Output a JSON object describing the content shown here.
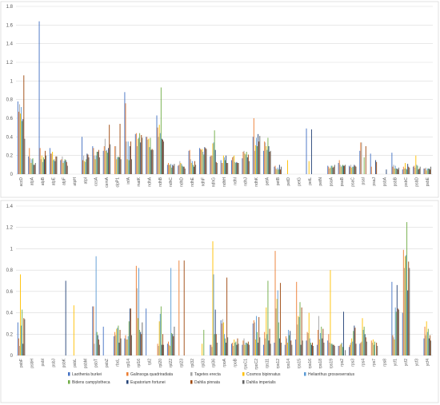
{
  "chart_data": [
    {
      "type": "bar",
      "ylim": [
        0,
        1.8
      ],
      "yticks": [
        "0",
        "0.2",
        "0.4",
        "0.6",
        "0.8",
        "1",
        "1.2",
        "1.4",
        "1.6",
        "1.8"
      ],
      "categories": [
        "accD",
        "atpA",
        "atpB",
        "atpE",
        "atpF",
        "atpH",
        "atpI",
        "ccsA",
        "cemA",
        "clpP1",
        "infA",
        "matK",
        "ndhA",
        "ndhB",
        "ndhC",
        "ndhD",
        "ndhE",
        "ndhF",
        "ndhG",
        "ndhH",
        "ndhI",
        "ndhJ",
        "ndhK",
        "petA",
        "petB",
        "petD",
        "petG",
        "petL",
        "petN",
        "psaA",
        "psaB",
        "psaC",
        "psaI",
        "psaJ",
        "psbA",
        "psbB",
        "psbC",
        "psbD",
        "psbE"
      ],
      "series": [
        {
          "name": "Laothenia burkei",
          "color": "#4472c4",
          "values": [
            0.78,
            0.19,
            1.64,
            0.28,
            0.15,
            0,
            0.4,
            0.3,
            0.25,
            0,
            0.88,
            0.43,
            0.4,
            0.63,
            0.1,
            0.09,
            0.25,
            0.28,
            0.19,
            0.15,
            0.15,
            0.17,
            0.4,
            0.25,
            0.08,
            0,
            0,
            0.49,
            0,
            0.09,
            0.12,
            0.09,
            0.25,
            0.22,
            0,
            0.23,
            0.05,
            0.08,
            0.06
          ]
        },
        {
          "name": "Galinsoga quadriradiata",
          "color": "#ed7d31",
          "values": [
            0.67,
            0.28,
            0.28,
            0.22,
            0.16,
            0,
            0.15,
            0.28,
            0.3,
            0.3,
            0.76,
            0.44,
            0.4,
            0.5,
            0.12,
            0.1,
            0.26,
            0.27,
            0.2,
            0.12,
            0.18,
            0.24,
            0.6,
            0.35,
            0.09,
            0,
            0,
            0,
            0,
            0.08,
            0.15,
            0.08,
            0.34,
            0.08,
            0,
            0.08,
            0.08,
            0.09,
            0.06
          ]
        },
        {
          "name": "Tagetes erecta",
          "color": "#a5a5a5",
          "values": [
            0.75,
            0.17,
            0.16,
            0.22,
            0.19,
            0,
            0.2,
            0.2,
            0.38,
            0.3,
            0.35,
            0.3,
            0.37,
            0.4,
            0.1,
            0.14,
            0.16,
            0.26,
            0.2,
            0.12,
            0.19,
            0.25,
            0.25,
            0.34,
            0.06,
            0,
            0,
            0,
            0,
            0.06,
            0.1,
            0.1,
            0.34,
            0,
            0,
            0.1,
            0.06,
            0.07,
            0.07
          ]
        },
        {
          "name": "Cosmos bipinnatus",
          "color": "#ffc000",
          "values": [
            0.65,
            0.12,
            0.2,
            0.24,
            0.12,
            0,
            0.14,
            0.16,
            0.25,
            0.16,
            0.16,
            0.38,
            0.38,
            0.53,
            0.1,
            0.12,
            0.12,
            0.27,
            0.33,
            0.2,
            0.2,
            0.22,
            0.31,
            0.3,
            0.05,
            0.15,
            0,
            0.14,
            0,
            0.07,
            0.08,
            0.07,
            0,
            0,
            0,
            0.06,
            0.12,
            0.2,
            0.04
          ]
        },
        {
          "name": "Helianthus grosseserratus",
          "color": "#5b9bd5",
          "values": [
            0.72,
            0.16,
            0.13,
            0.15,
            0.14,
            0,
            0.13,
            0.2,
            0.26,
            0.18,
            0.35,
            0.39,
            0.29,
            0.44,
            0.11,
            0.11,
            0.14,
            0.24,
            0.34,
            0.18,
            0.13,
            0.21,
            0.39,
            0.26,
            0.07,
            0,
            0,
            0,
            0,
            0.09,
            0.09,
            0.08,
            0,
            0,
            0,
            0.09,
            0.06,
            0.1,
            0.06
          ]
        },
        {
          "name": "Bidens campylotheca",
          "color": "#70ad47",
          "values": [
            0.57,
            0.17,
            0.18,
            0.16,
            0.16,
            0,
            0.16,
            0.24,
            0.23,
            0.19,
            0.15,
            0.44,
            0.39,
            0.93,
            0.07,
            0.09,
            0.1,
            0.21,
            0.47,
            0.15,
            0.12,
            0.24,
            0.3,
            0.39,
            0.05,
            0,
            0,
            0,
            0,
            0.09,
            0.1,
            0.08,
            0.18,
            0,
            0,
            0.06,
            0.05,
            0.09,
            0.06
          ]
        },
        {
          "name": "Eupatorium fortunei",
          "color": "#264478",
          "values": [
            0.59,
            0.1,
            0.16,
            0.14,
            0.15,
            0,
            0.22,
            0.24,
            0.28,
            0.18,
            0.3,
            0.34,
            0.26,
            0.38,
            0.1,
            0.08,
            0.08,
            0.29,
            0.26,
            0.2,
            0.13,
            0.18,
            0.43,
            0.3,
            0.1,
            0,
            0,
            0.48,
            0,
            0.07,
            0.09,
            0.1,
            0,
            0.15,
            0.05,
            0.06,
            0.11,
            0.05,
            0.06
          ]
        },
        {
          "name": "Dahlia pinnata",
          "color": "#9e480e",
          "values": [
            1.06,
            0.1,
            0.25,
            0.19,
            0.13,
            0,
            0.21,
            0.26,
            0.53,
            0.54,
            0.35,
            0.42,
            0.27,
            0.37,
            0.09,
            0.08,
            0.14,
            0.28,
            0.13,
            0.12,
            0.12,
            0.21,
            0.35,
            0.24,
            0.05,
            0,
            0,
            0,
            0,
            0.08,
            0.09,
            0.09,
            0.3,
            0.13,
            0,
            0.05,
            0.08,
            0.06,
            0.05
          ]
        },
        {
          "name": "Dahlia imperialis",
          "color": "#636363",
          "values": [
            0.38,
            0.12,
            0.2,
            0.19,
            0.09,
            0,
            0.18,
            0.18,
            0.32,
            0.16,
            0.16,
            0.39,
            0.26,
            0.35,
            0.11,
            0.06,
            0.1,
            0.27,
            0.12,
            0.12,
            0.12,
            0.14,
            0.41,
            0.25,
            0.08,
            0,
            0,
            0,
            0,
            0.1,
            0.1,
            0.08,
            0,
            0,
            0,
            0.07,
            0.07,
            0.08,
            0.08
          ]
        }
      ]
    },
    {
      "type": "bar",
      "ylim": [
        0,
        1.4
      ],
      "yticks": [
        "0",
        "0.2",
        "0.4",
        "0.6",
        "0.8",
        "1",
        "1.2",
        "1.4"
      ],
      "categories": [
        "psbF",
        "psbH",
        "psbI",
        "psbJ",
        "psbK",
        "psbL",
        "psbM",
        "psbT",
        "psbZ",
        "rbcL",
        "rpl14",
        "rpl16",
        "rpl2",
        "rpl20",
        "rpl22",
        "rpl23",
        "rpl32",
        "rpl33",
        "rpl36",
        "rpoA",
        "rpoB",
        "rpoC1",
        "rpoC2",
        "rps11",
        "rps12",
        "rps14",
        "rps15",
        "rps16",
        "rps18",
        "rps19",
        "rps2",
        "rps3",
        "rps4",
        "rps7",
        "rps8",
        "ycf1",
        "ycf2",
        "ycf3",
        "ycf4"
      ],
      "series": [
        {
          "name": "Laothenia burkei",
          "color": "#4472c4",
          "values": [
            0.31,
            0,
            0,
            0,
            0,
            0,
            0,
            0.46,
            0.27,
            0.18,
            0.16,
            0,
            0.44,
            0,
            0.11,
            0,
            0,
            0,
            0.1,
            0.33,
            0.11,
            0.1,
            0.3,
            0.1,
            0.12,
            0.1,
            0.15,
            0.14,
            0.1,
            0.14,
            0.09,
            0.08,
            0.11,
            0,
            0,
            0.69,
            0.4,
            0,
            0.16
          ]
        },
        {
          "name": "Galinsoga quadriradiata",
          "color": "#ed7d31",
          "values": [
            0.16,
            0,
            0,
            0,
            0,
            0,
            0,
            0.46,
            0,
            0.22,
            0.19,
            0.84,
            0,
            0.11,
            0.13,
            0.89,
            0,
            0,
            0.1,
            0.3,
            0.12,
            0.14,
            0.33,
            0.22,
            0.98,
            0.18,
            0.69,
            0.22,
            0.24,
            0.2,
            0.09,
            0.1,
            0.12,
            0.14,
            0,
            0.19,
            0.99,
            0,
            0.27
          ]
        },
        {
          "name": "Tagetes erecta",
          "color": "#a5a5a5",
          "values": [
            0.09,
            0,
            0,
            0,
            0,
            0,
            0,
            0.11,
            0,
            0.19,
            0.15,
            0.63,
            0,
            0.09,
            0.1,
            0,
            0,
            0,
            0.08,
            0.34,
            0.09,
            0.16,
            0.31,
            0.16,
            0.44,
            0.16,
            0.29,
            0.21,
            0.37,
            0.12,
            0.1,
            0.12,
            0.13,
            0.12,
            0,
            0.17,
            0.82,
            0,
            0.19
          ]
        },
        {
          "name": "Cosmos bipinnatus",
          "color": "#ffc000",
          "values": [
            0.76,
            0,
            0,
            0,
            0,
            0.47,
            0,
            0,
            0,
            0.25,
            0.15,
            0.35,
            0,
            0.32,
            0.09,
            0,
            0,
            0.11,
            1.07,
            0.31,
            0.15,
            0.1,
            0.15,
            0.45,
            0.53,
            0.12,
            0.37,
            0.4,
            0.15,
            0.8,
            0.11,
            0.16,
            0.35,
            0.15,
            0,
            0.15,
            0.93,
            0,
            0.32
          ]
        },
        {
          "name": "Helianthus grosseserratus",
          "color": "#5b9bd5",
          "values": [
            0.28,
            0,
            0,
            0,
            0,
            0,
            0,
            0.93,
            0,
            0.26,
            0.18,
            0.82,
            0,
            0.39,
            0.82,
            0,
            0,
            0,
            0.76,
            0.2,
            0.12,
            0.12,
            0.37,
            0.2,
            0.61,
            0.24,
            0.36,
            0.16,
            0.21,
            0.11,
            0.12,
            0.13,
            0.24,
            0.1,
            0,
            0.45,
            0.94,
            0,
            0.22
          ]
        },
        {
          "name": "Bidens campylotheca",
          "color": "#70ad47",
          "values": [
            0.43,
            0,
            0,
            0,
            0,
            0,
            0,
            0.22,
            0,
            0.28,
            0.32,
            0.24,
            0,
            0.46,
            0.21,
            0,
            0,
            0.24,
            0.2,
            0.16,
            0.13,
            0.12,
            0.22,
            0.7,
            0.31,
            0.19,
            0.5,
            0.12,
            0.27,
            0.11,
            0.08,
            0.23,
            0.27,
            0.13,
            0,
            0.41,
            1.25,
            0,
            0.25
          ]
        },
        {
          "name": "Eupatorium fortunei",
          "color": "#264478",
          "values": [
            0.11,
            0,
            0,
            0,
            0.7,
            0,
            0,
            0.19,
            0,
            0.12,
            0.44,
            0.22,
            0,
            0.1,
            0.2,
            0,
            0,
            0,
            0.43,
            0.12,
            0.1,
            0.11,
            0.12,
            0.14,
            0.16,
            0.23,
            0.1,
            0.1,
            0.16,
            0.1,
            0.41,
            0.28,
            0.2,
            0,
            0,
            0.66,
            0.61,
            0,
            0.16
          ]
        },
        {
          "name": "Dahlia pinnata",
          "color": "#9e480e",
          "values": [
            0.35,
            0,
            0,
            0,
            0,
            0,
            0,
            0.15,
            0,
            0.24,
            0.44,
            0.2,
            0,
            0.2,
            0.18,
            0.89,
            0,
            0,
            0.2,
            0.73,
            0.16,
            0.13,
            0.36,
            0.25,
            0.68,
            0.14,
            0.45,
            0.12,
            0.25,
            0.1,
            0,
            0.26,
            0.17,
            0.12,
            0,
            0.44,
            0.88,
            0,
            0.19
          ]
        },
        {
          "name": "Dahlia imperialis",
          "color": "#636363",
          "values": [
            0.34,
            0,
            0,
            0,
            0,
            0,
            0,
            0.1,
            0,
            0.16,
            0.19,
            0.31,
            0,
            0.1,
            0.27,
            0,
            0,
            0,
            0.12,
            0.17,
            0.11,
            0.1,
            0.17,
            0.11,
            0.12,
            0.1,
            0.14,
            0.09,
            0.12,
            0.09,
            0.05,
            0.11,
            0.13,
            0.09,
            0,
            0.43,
            0.82,
            0,
            0.14
          ]
        }
      ]
    }
  ]
}
